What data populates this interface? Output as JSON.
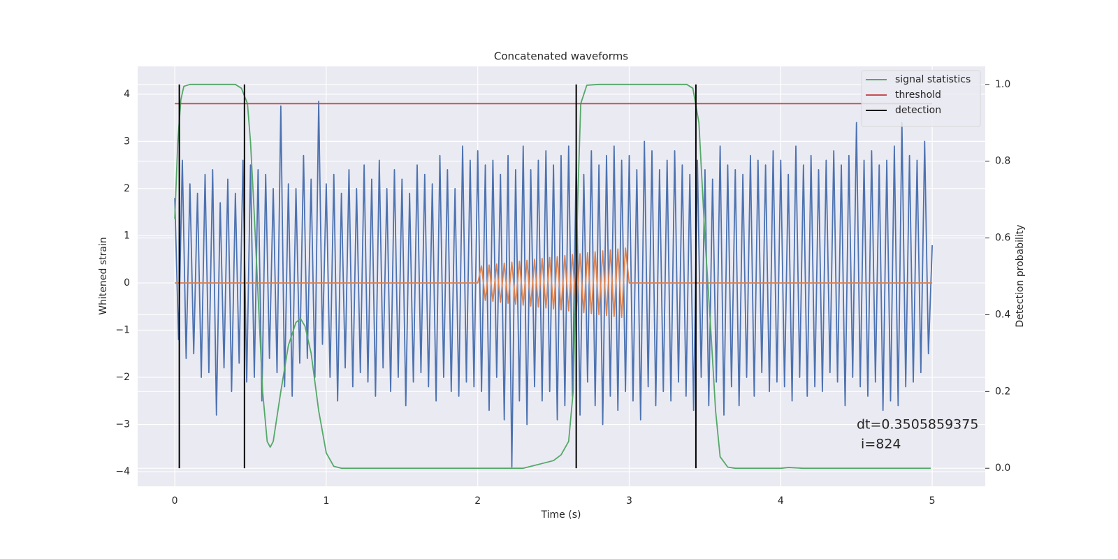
{
  "chart_data": {
    "type": "line",
    "title": "Concatenated waveforms",
    "x_label": "Time (s)",
    "y_label": "Whitened strain",
    "y2_label": "Detection probability",
    "xlim": [
      -0.245,
      5.35
    ],
    "ylim": [
      -4.31,
      4.59
    ],
    "y2lim": [
      -0.047,
      1.047
    ],
    "xticks": [
      0,
      1,
      2,
      3,
      4,
      5
    ],
    "yticks": [
      {
        "value": -4,
        "label": "−4"
      },
      {
        "value": -3,
        "label": "−3"
      },
      {
        "value": -2,
        "label": "−2"
      },
      {
        "value": -1,
        "label": "−1"
      },
      0,
      1,
      2,
      3,
      4
    ],
    "y2ticks": [
      {
        "value": 0,
        "label": "0.0"
      },
      0.2,
      0.4,
      0.6,
      0.8,
      {
        "value": 1,
        "label": "1.0"
      }
    ],
    "grid": true,
    "legend": "upper right",
    "annotation": [
      "dt=0.3505859375",
      " i=824"
    ],
    "series": [
      {
        "color": "#4c72b0",
        "axis": "y",
        "x": [
          0,
          0.025,
          0.05,
          0.075,
          0.1,
          0.125,
          0.15,
          0.175,
          0.2,
          0.225,
          0.25,
          0.275,
          0.3,
          0.325,
          0.35,
          0.375,
          0.4,
          0.425,
          0.45,
          0.475,
          0.5,
          0.525,
          0.55,
          0.575,
          0.6,
          0.625,
          0.65,
          0.675,
          0.7,
          0.725,
          0.75,
          0.775,
          0.8,
          0.825,
          0.85,
          0.875,
          0.9,
          0.925,
          0.95,
          0.975,
          1,
          1.025,
          1.05,
          1.075,
          1.1,
          1.125,
          1.15,
          1.175,
          1.2,
          1.225,
          1.25,
          1.275,
          1.3,
          1.325,
          1.35,
          1.375,
          1.4,
          1.425,
          1.45,
          1.475,
          1.5,
          1.525,
          1.55,
          1.575,
          1.6,
          1.625,
          1.65,
          1.675,
          1.7,
          1.725,
          1.75,
          1.775,
          1.8,
          1.825,
          1.85,
          1.875,
          1.9,
          1.925,
          1.95,
          1.975,
          2,
          2.025,
          2.05,
          2.075,
          2.1,
          2.125,
          2.15,
          2.175,
          2.2,
          2.225,
          2.25,
          2.275,
          2.3,
          2.325,
          2.35,
          2.375,
          2.4,
          2.425,
          2.45,
          2.475,
          2.5,
          2.525,
          2.55,
          2.575,
          2.6,
          2.625,
          2.65,
          2.675,
          2.7,
          2.725,
          2.75,
          2.775,
          2.8,
          2.825,
          2.85,
          2.875,
          2.9,
          2.925,
          2.95,
          2.975,
          3,
          3.025,
          3.05,
          3.075,
          3.1,
          3.125,
          3.15,
          3.175,
          3.2,
          3.225,
          3.25,
          3.275,
          3.3,
          3.325,
          3.35,
          3.375,
          3.4,
          3.425,
          3.45,
          3.475,
          3.5,
          3.525,
          3.55,
          3.575,
          3.6,
          3.625,
          3.65,
          3.675,
          3.7,
          3.725,
          3.75,
          3.775,
          3.8,
          3.825,
          3.85,
          3.875,
          3.9,
          3.925,
          3.95,
          3.975,
          4,
          4.025,
          4.05,
          4.075,
          4.1,
          4.125,
          4.15,
          4.175,
          4.2,
          4.225,
          4.25,
          4.275,
          4.3,
          4.325,
          4.35,
          4.375,
          4.4,
          4.425,
          4.45,
          4.475,
          4.5,
          4.525,
          4.55,
          4.575,
          4.6,
          4.625,
          4.65,
          4.675,
          4.7,
          4.725,
          4.75,
          4.775,
          4.8,
          4.825,
          4.85,
          4.875,
          4.9,
          4.925,
          4.95,
          4.975,
          5
        ],
        "values": [
          1.8,
          -1.2,
          2.6,
          -1.6,
          2.1,
          -1.5,
          1.9,
          -2.0,
          2.3,
          -1.9,
          2.4,
          -2.8,
          1.7,
          -1.8,
          2.2,
          -2.3,
          1.9,
          -1.7,
          2.6,
          -2.1,
          2.5,
          -2.0,
          2.4,
          -2.5,
          2.3,
          -1.6,
          2.0,
          -1.9,
          3.75,
          -2.2,
          2.1,
          -2.4,
          2.0,
          -1.7,
          2.7,
          -1.6,
          2.2,
          -2.0,
          3.85,
          -1.3,
          2.1,
          -2.0,
          2.3,
          -2.5,
          1.9,
          -1.8,
          2.4,
          -2.2,
          2.0,
          -1.9,
          2.5,
          -2.1,
          2.2,
          -2.4,
          2.6,
          -1.8,
          2.0,
          -2.3,
          2.4,
          -2.0,
          2.2,
          -2.6,
          1.9,
          -2.1,
          2.5,
          -1.9,
          2.3,
          -2.2,
          2.1,
          -2.5,
          2.7,
          -2.0,
          2.4,
          -2.3,
          2.0,
          -2.4,
          2.9,
          -2.1,
          2.6,
          -2.2,
          2.8,
          -2.3,
          2.5,
          -2.7,
          2.6,
          -2.0,
          2.3,
          -2.9,
          2.7,
          -3.9,
          2.4,
          -2.5,
          2.9,
          -3.0,
          2.4,
          -2.2,
          2.6,
          -2.5,
          2.8,
          -2.3,
          2.5,
          -2.9,
          2.7,
          -2.6,
          2.9,
          -2.4,
          2.6,
          -2.8,
          2.3,
          -2.1,
          2.8,
          -2.6,
          2.5,
          -3.0,
          2.7,
          -2.4,
          2.9,
          -2.7,
          2.6,
          -2.3,
          2.7,
          -2.5,
          2.4,
          -2.9,
          3.0,
          -2.2,
          2.8,
          -2.6,
          2.4,
          -2.3,
          2.6,
          -2.5,
          2.8,
          -2.1,
          2.5,
          -2.4,
          2.3,
          -2.7,
          2.6,
          -2.0,
          2.4,
          -2.6,
          2.2,
          -2.1,
          2.9,
          -2.8,
          2.5,
          -2.2,
          2.4,
          -2.6,
          2.3,
          -2.0,
          2.7,
          -2.4,
          2.6,
          -1.9,
          2.5,
          -2.3,
          2.8,
          -2.1,
          2.6,
          -2.2,
          2.3,
          -2.5,
          2.9,
          -2.0,
          2.5,
          -2.4,
          2.7,
          -2.2,
          2.4,
          -2.3,
          2.6,
          -1.9,
          2.8,
          -2.1,
          2.5,
          -2.6,
          2.7,
          -2.0,
          3.4,
          -2.2,
          2.6,
          -2.4,
          2.8,
          -2.1,
          2.5,
          -2.7,
          2.6,
          -2.5,
          2.9,
          -2.6,
          3.4,
          -2.2,
          2.7,
          -2.1,
          2.6,
          -1.9,
          3.0,
          -1.5,
          0.8
        ]
      },
      {
        "color": "#dd8452",
        "axis": "y",
        "x": [
          0,
          2,
          2.025,
          2.05,
          2.075,
          2.1,
          2.125,
          2.15,
          2.175,
          2.2,
          2.225,
          2.25,
          2.275,
          2.3,
          2.325,
          2.35,
          2.375,
          2.4,
          2.425,
          2.45,
          2.475,
          2.5,
          2.525,
          2.55,
          2.575,
          2.6,
          2.625,
          2.65,
          2.675,
          2.7,
          2.725,
          2.75,
          2.775,
          2.8,
          2.825,
          2.85,
          2.875,
          2.9,
          2.925,
          2.95,
          2.975,
          3,
          5
        ],
        "values": [
          0,
          0,
          0.36,
          -0.37,
          0.38,
          -0.39,
          0.4,
          -0.41,
          0.42,
          -0.43,
          0.44,
          -0.45,
          0.46,
          -0.47,
          0.48,
          -0.49,
          0.5,
          -0.51,
          0.52,
          -0.53,
          0.54,
          -0.55,
          0.56,
          -0.57,
          0.58,
          -0.59,
          0.6,
          -0.61,
          0.62,
          -0.63,
          0.64,
          -0.65,
          0.66,
          -0.67,
          0.68,
          -0.69,
          0.7,
          -0.71,
          0.72,
          -0.73,
          0.74,
          0,
          0
        ]
      },
      {
        "name": "signal statistics",
        "color": "#55a868",
        "axis": "y2",
        "x": [
          0,
          0.02,
          0.04,
          0.06,
          0.1,
          0.4,
          0.44,
          0.48,
          0.5,
          0.52,
          0.55,
          0.58,
          0.61,
          0.63,
          0.65,
          0.7,
          0.75,
          0.8,
          0.83,
          0.86,
          0.9,
          0.95,
          1.0,
          1.05,
          1.1,
          2.3,
          2.4,
          2.5,
          2.55,
          2.6,
          2.63,
          2.66,
          2.68,
          2.72,
          2.8,
          3.38,
          3.42,
          3.46,
          3.5,
          3.54,
          3.57,
          3.6,
          3.65,
          3.7,
          4.0,
          4.05,
          4.15,
          4.99
        ],
        "values": [
          0.65,
          0.85,
          0.96,
          0.995,
          1.0,
          1.0,
          0.99,
          0.95,
          0.85,
          0.7,
          0.45,
          0.2,
          0.07,
          0.055,
          0.07,
          0.2,
          0.32,
          0.38,
          0.39,
          0.37,
          0.3,
          0.15,
          0.04,
          0.005,
          0.0,
          0.0,
          0.01,
          0.02,
          0.035,
          0.07,
          0.2,
          0.7,
          0.95,
          0.998,
          1.0,
          1.0,
          0.99,
          0.9,
          0.6,
          0.35,
          0.15,
          0.03,
          0.003,
          0.0,
          0.0,
          0.002,
          0.0,
          0.0
        ]
      },
      {
        "name": "threshold",
        "color": "#c44e52",
        "axis": "y2",
        "x": [
          0,
          5
        ],
        "values": [
          0.95,
          0.95
        ]
      },
      {
        "name": "detection",
        "color": "#000000",
        "axis": "y2",
        "kind": "vlines",
        "x": [
          0.03,
          0.46,
          2.65,
          3.44
        ],
        "values": [
          1,
          1,
          1,
          1
        ]
      }
    ]
  }
}
